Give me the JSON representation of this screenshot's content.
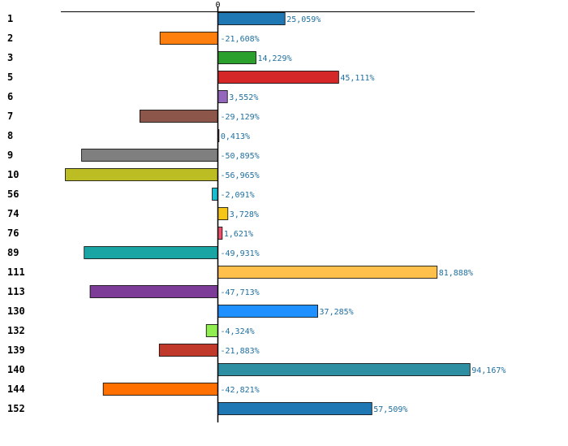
{
  "chart_data": {
    "type": "bar",
    "orientation": "horizontal",
    "title": "",
    "xlabel": "",
    "ylabel": "",
    "xlim": [
      -72.5,
      110.5
    ],
    "zero_tick_label": "0",
    "grid": false,
    "legend": "none",
    "categories": [
      "1",
      "2",
      "3",
      "5",
      "6",
      "7",
      "8",
      "9",
      "10",
      "56",
      "74",
      "76",
      "89",
      "111",
      "113",
      "130",
      "132",
      "139",
      "140",
      "144",
      "152"
    ],
    "values": [
      25.059,
      -21.608,
      14.229,
      45.111,
      3.552,
      -29.129,
      0.413,
      -50.895,
      -56.965,
      -2.091,
      3.728,
      1.621,
      -49.931,
      81.888,
      -47.713,
      37.285,
      -4.324,
      -21.883,
      94.167,
      -42.821,
      57.509
    ],
    "value_labels": [
      "25,059%",
      "-21,608%",
      "14,229%",
      "45,111%",
      "3,552%",
      "-29,129%",
      "0,413%",
      "-50,895%",
      "-56,965%",
      "-2,091%",
      "3,728%",
      "1,621%",
      "-49,931%",
      "81,888%",
      "-47,713%",
      "37,285%",
      "-4,324%",
      "-21,883%",
      "94,167%",
      "-42,821%",
      "57,509%"
    ],
    "colors": [
      "#1f77b4",
      "#ff7f0e",
      "#2ca02c",
      "#d62728",
      "#9467bd",
      "#8c564b",
      "#e377c2",
      "#7f7f7f",
      "#bcbd22",
      "#17becf",
      "#f5c518",
      "#f0506e",
      "#1aa5a5",
      "#ffc04c",
      "#7d3c98",
      "#1e90ff",
      "#90ee50",
      "#c0392b",
      "#2e8fa3",
      "#ff7000",
      "#1f77b4"
    ],
    "label_color": "#1f6f9f"
  }
}
